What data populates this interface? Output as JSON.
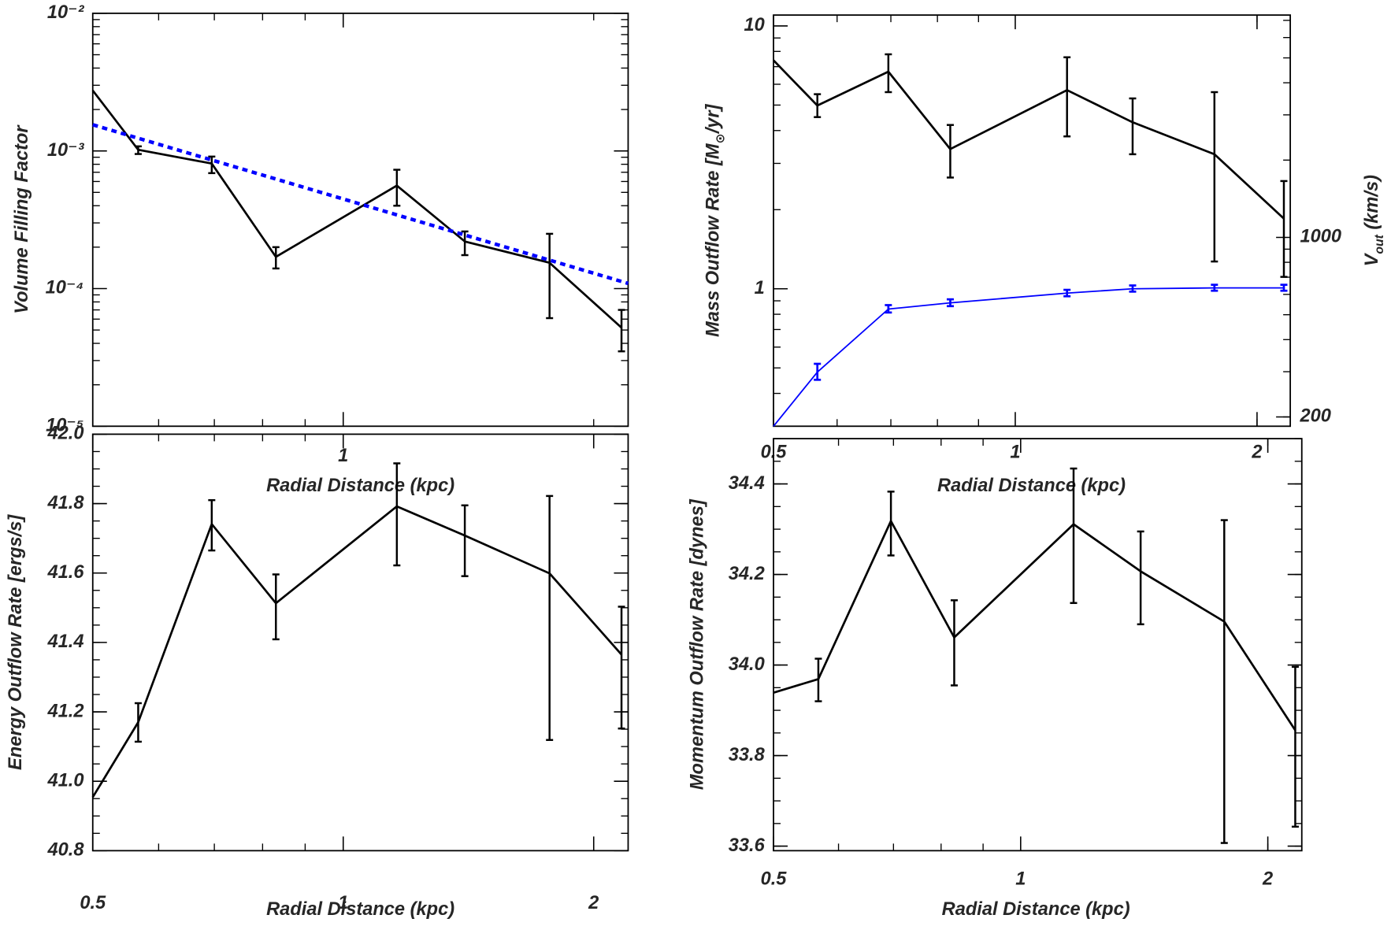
{
  "chart_data": [
    {
      "type": "line",
      "y_label": "Volume Filling Factor",
      "x_label": "Radial Distance (kpc)",
      "log_x": true,
      "log_y": true,
      "xlim": [
        0.5,
        2.2
      ],
      "xticks": [
        1
      ],
      "ylim": [
        1e-05,
        0.01
      ],
      "yticks": [
        {
          "value": 1e-05,
          "label": "10⁻⁵"
        },
        {
          "value": 0.0001,
          "label": "10⁻⁴"
        },
        {
          "value": 0.001,
          "label": "10⁻³"
        },
        {
          "value": 0.01,
          "label": "10⁻²"
        }
      ],
      "x": [
        0.5,
        0.567,
        0.695,
        0.83,
        1.16,
        1.4,
        1.77,
        2.16
      ],
      "series": [
        {
          "color": "#000000",
          "values": [
            0.00275,
            0.00102,
            0.00081,
            0.00017,
            0.00056,
            0.00022,
            0.000154,
            5.2e-05
          ],
          "lower": [
            null,
            0.00095,
            0.00069,
            0.00014,
            0.0004,
            0.000175,
            6.1e-05,
            3.5e-05
          ],
          "upper": [
            null,
            0.00108,
            0.00091,
            0.0002,
            0.00073,
            0.00026,
            0.00025,
            7e-05
          ]
        },
        {
          "color": "#0000ff",
          "dashed": true,
          "x": [
            0.5,
            2.2
          ],
          "values": [
            0.00155,
            0.000109
          ]
        }
      ]
    },
    {
      "type": "line",
      "y_label": [
        "Mass Outflow Rate [M",
        "⊙",
        "/yr]"
      ],
      "y2_label": [
        "V",
        "out",
        " (km/s)"
      ],
      "x_label": "Radial Distance (kpc)",
      "log_x": true,
      "log_y": true,
      "log_y2": true,
      "xlim": [
        0.5,
        2.2
      ],
      "xticks": [
        0.5,
        1,
        2
      ],
      "ylim": [
        0.3,
        11
      ],
      "yticks": [
        1,
        10
      ],
      "y2lim": [
        184,
        7340
      ],
      "y2ticks": [
        200,
        1000
      ],
      "x": [
        0.5,
        0.567,
        0.695,
        0.83,
        1.16,
        1.4,
        1.77,
        2.16
      ],
      "series": [
        {
          "color": "#000000",
          "values": [
            7.4,
            4.98,
            6.7,
            3.4,
            5.7,
            4.3,
            3.25,
            1.85
          ],
          "lower": [
            null,
            4.5,
            5.6,
            2.65,
            3.8,
            3.25,
            1.27,
            1.11
          ],
          "upper": [
            null,
            5.5,
            7.8,
            4.2,
            7.6,
            5.3,
            5.6,
            2.57
          ]
        },
        {
          "color": "#0000ff",
          "axis": "y2",
          "thin": true,
          "values": [
            184,
            299,
            526,
            556,
            607,
            631,
            636,
            636
          ],
          "lower": [
            null,
            279,
            510,
            540,
            590,
            615,
            620,
            620
          ],
          "upper": [
            null,
            322,
            545,
            574,
            625,
            650,
            654,
            654
          ]
        }
      ]
    },
    {
      "type": "line",
      "y_label": "Energy Outflow Rate [ergs/s]",
      "x_label": "Radial Distance (kpc)",
      "log_x": true,
      "log_y": false,
      "xlim": [
        0.5,
        2.2
      ],
      "xticks": [
        0.5,
        1,
        2
      ],
      "ylim": [
        40.8,
        42.0
      ],
      "yticks": [
        40.8,
        {
          "value": 41,
          "label": "41.0"
        },
        41.2,
        41.4,
        41.6,
        41.8,
        {
          "value": 42,
          "label": "42.0"
        }
      ],
      "x": [
        0.5,
        0.567,
        0.695,
        0.83,
        1.16,
        1.4,
        1.77,
        2.16
      ],
      "series": [
        {
          "color": "#000000",
          "values": [
            40.954,
            41.17,
            41.741,
            41.513,
            41.792,
            41.708,
            41.599,
            41.365
          ],
          "lower": [
            null,
            41.114,
            41.665,
            41.409,
            41.622,
            41.591,
            41.119,
            41.152
          ],
          "upper": [
            null,
            41.225,
            41.81,
            41.596,
            41.916,
            41.795,
            41.822,
            41.503
          ]
        }
      ]
    },
    {
      "type": "line",
      "y_label": "Momentum Outflow Rate [dynes]",
      "x_label": "Radial Distance (kpc)",
      "log_x": true,
      "log_y": false,
      "xlim": [
        0.5,
        2.2
      ],
      "xticks": [
        0.5,
        1,
        2
      ],
      "ylim": [
        33.59,
        34.5
      ],
      "yticks": [
        33.6,
        33.8,
        {
          "value": 34,
          "label": "34.0"
        },
        34.2,
        34.4
      ],
      "x": [
        0.5,
        0.567,
        0.695,
        0.83,
        1.16,
        1.4,
        1.77,
        2.16
      ],
      "series": [
        {
          "color": "#000000",
          "values": [
            33.939,
            33.969,
            34.318,
            34.061,
            34.311,
            34.207,
            34.096,
            33.856
          ],
          "lower": [
            null,
            33.92,
            34.242,
            33.955,
            34.137,
            34.09,
            33.607,
            33.643
          ],
          "upper": [
            null,
            34.014,
            34.383,
            34.143,
            34.434,
            34.295,
            34.32,
            33.996
          ]
        }
      ]
    }
  ]
}
